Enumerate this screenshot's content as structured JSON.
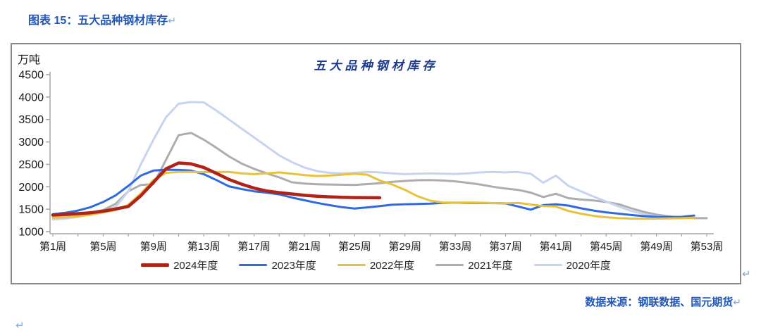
{
  "page": {
    "header_title": "图表 15：五大品种钢材库存",
    "source_text": "数据来源：钢联数据、国元期货",
    "paragraph_mark": "↵"
  },
  "chart_data": {
    "type": "line",
    "title": "五大品种钢材库存",
    "unit_label": "万吨",
    "legend_position": "bottom",
    "grid": false,
    "axis_color": "#A6A6A6",
    "x_axis": {
      "range_weeks": [
        1,
        53
      ],
      "label_step_weeks": 4,
      "minor_tick_step_weeks": 2,
      "tick_labels": [
        "第1周",
        "第5周",
        "第9周",
        "第13周",
        "第17周",
        "第21周",
        "第25周",
        "第29周",
        "第33周",
        "第37周",
        "第41周",
        "第45周",
        "第49周",
        "第53周"
      ]
    },
    "y_axis": {
      "lim": [
        1000,
        4500
      ],
      "ticks": [
        1000,
        1500,
        2000,
        2500,
        3000,
        3500,
        4000,
        4500
      ]
    },
    "series": [
      {
        "name": "2024年度",
        "color": "#B02418",
        "stroke_width": 4.5,
        "z": 5,
        "start_week": 1,
        "values": [
          1370,
          1385,
          1400,
          1420,
          1455,
          1505,
          1560,
          1800,
          2100,
          2400,
          2530,
          2510,
          2430,
          2300,
          2165,
          2060,
          1970,
          1905,
          1870,
          1840,
          1810,
          1790,
          1775,
          1765,
          1760,
          1758,
          1755
        ]
      },
      {
        "name": "2023年度",
        "color": "#2F6BDF",
        "stroke_width": 3,
        "z": 3,
        "start_week": 1,
        "values": [
          1390,
          1420,
          1470,
          1545,
          1660,
          1810,
          2020,
          2250,
          2360,
          2380,
          2375,
          2360,
          2280,
          2150,
          2010,
          1950,
          1900,
          1870,
          1830,
          1760,
          1700,
          1640,
          1590,
          1545,
          1515,
          1540,
          1570,
          1600,
          1610,
          1615,
          1625,
          1640,
          1645,
          1640,
          1638,
          1635,
          1630,
          1560,
          1490,
          1590,
          1610,
          1580,
          1520,
          1470,
          1430,
          1400,
          1370,
          1345,
          1330,
          1325,
          1330,
          1360
        ]
      },
      {
        "name": "2022年度",
        "color": "#E9C23D",
        "stroke_width": 3,
        "z": 4,
        "start_week": 1,
        "values": [
          1310,
          1320,
          1340,
          1375,
          1430,
          1480,
          1600,
          1850,
          2150,
          2310,
          2330,
          2330,
          2325,
          2330,
          2330,
          2300,
          2280,
          2300,
          2320,
          2290,
          2260,
          2240,
          2250,
          2270,
          2290,
          2270,
          2140,
          2050,
          1930,
          1790,
          1690,
          1650,
          1645,
          1650,
          1645,
          1635,
          1630,
          1640,
          1605,
          1570,
          1560,
          1460,
          1400,
          1350,
          1320,
          1300,
          1290,
          1288,
          1290,
          1295,
          1300,
          1310
        ]
      },
      {
        "name": "2021年度",
        "color": "#ADADAD",
        "stroke_width": 3,
        "z": 1,
        "start_week": 1,
        "values": [
          1350,
          1365,
          1385,
          1425,
          1480,
          1620,
          1900,
          2040,
          2060,
          2600,
          3150,
          3200,
          3050,
          2870,
          2680,
          2520,
          2400,
          2300,
          2210,
          2100,
          2070,
          2055,
          2050,
          2045,
          2040,
          2060,
          2080,
          2110,
          2130,
          2145,
          2150,
          2140,
          2120,
          2090,
          2050,
          2000,
          1960,
          1930,
          1870,
          1770,
          1845,
          1745,
          1715,
          1695,
          1660,
          1610,
          1520,
          1440,
          1380,
          1340,
          1310,
          1300,
          1300
        ]
      },
      {
        "name": "2020年度",
        "color": "#C7D4F0",
        "stroke_width": 3,
        "z": 2,
        "start_week": 1,
        "values": [
          1270,
          1290,
          1330,
          1385,
          1450,
          1550,
          1900,
          2500,
          3050,
          3550,
          3850,
          3890,
          3880,
          3700,
          3500,
          3300,
          3100,
          2900,
          2700,
          2550,
          2430,
          2350,
          2310,
          2300,
          2310,
          2330,
          2320,
          2300,
          2280,
          2290,
          2300,
          2290,
          2285,
          2300,
          2320,
          2330,
          2320,
          2330,
          2290,
          2090,
          2250,
          2020,
          1900,
          1780,
          1670,
          1560,
          1460,
          1390,
          1340,
          1320
        ]
      }
    ]
  }
}
